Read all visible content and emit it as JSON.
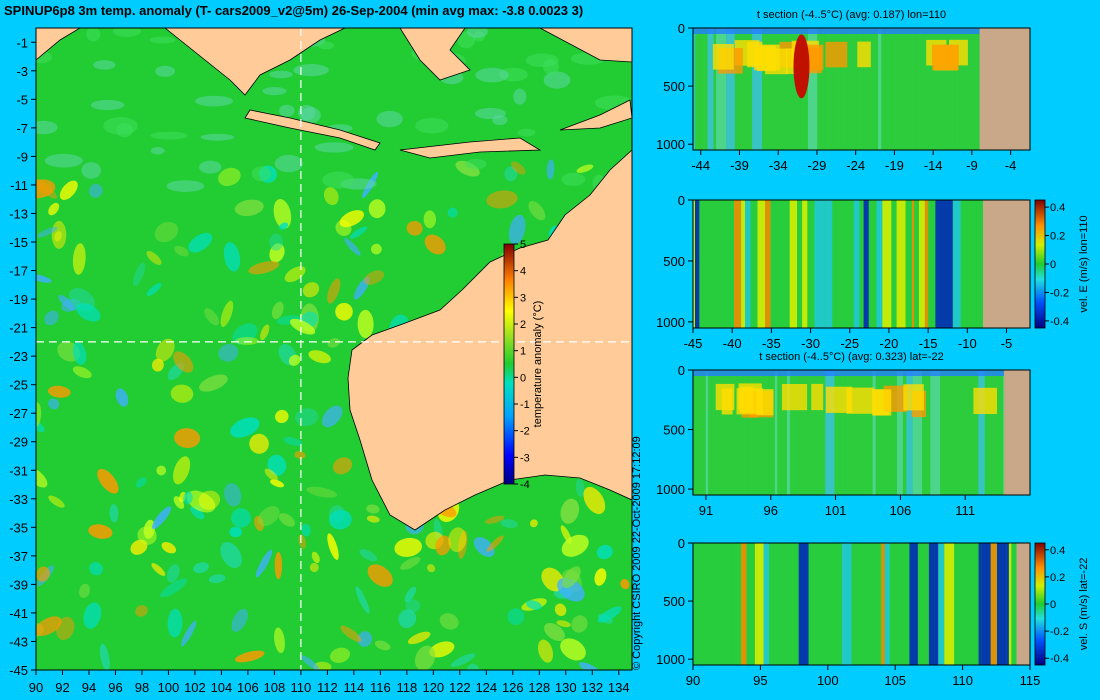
{
  "title": "SPINUP6p8 3m temp. anomaly (T- cars2009_v2@5m) 26-Sep-2004 (min avg max: -3.8 0.0023 3)",
  "copyright": "© Copyright CSIRO 2009  22-Oct-2009 17:12:09",
  "colors": {
    "background": "#00ccff",
    "land": "#ffcc99",
    "panel_land": "#c8a888",
    "ocean_base": "#22cc33",
    "crosshair": "#ffffff"
  },
  "chart_data": [
    {
      "type": "heatmap",
      "name": "map",
      "x_ticks": [
        "90",
        "92",
        "94",
        "96",
        "98",
        "100",
        "102",
        "104",
        "106",
        "108",
        "110",
        "112",
        "114",
        "116",
        "118",
        "120",
        "122",
        "124",
        "126",
        "128",
        "130",
        "132",
        "134"
      ],
      "y_ticks": [
        "-1",
        "-3",
        "-5",
        "-7",
        "-9",
        "-11",
        "-13",
        "-15",
        "-17",
        "-19",
        "-21",
        "-23",
        "-25",
        "-27",
        "-29",
        "-31",
        "-33",
        "-35",
        "-37",
        "-39",
        "-41",
        "-43",
        "-45"
      ],
      "xlim": [
        90,
        135
      ],
      "ylim": [
        -45,
        0
      ],
      "crosshair_lon": 110,
      "crosshair_lat": -22,
      "colorbar": {
        "label": "temperature anomaly (°C)",
        "ticks": [
          "5",
          "4",
          "3",
          "2",
          "1",
          "0",
          "-1",
          "-2",
          "-3",
          "-4"
        ],
        "range": [
          -4,
          5
        ]
      }
    },
    {
      "type": "heatmap",
      "name": "panel1",
      "title": "t section (-4..5°C) (avg: 0.187) lon=110",
      "x_ticks": [
        "-44",
        "-39",
        "-34",
        "-29",
        "-24",
        "-19",
        "-14",
        "-9",
        "-4"
      ],
      "y_ticks": [
        "0",
        "500",
        "1000"
      ],
      "xlim": [
        -45,
        -1.5
      ],
      "ylim": [
        1050,
        0
      ],
      "land_from_x": -8,
      "hot_spot": -31
    },
    {
      "type": "heatmap",
      "name": "panel2",
      "x_ticks": [
        "-45",
        "-40",
        "-35",
        "-30",
        "-25",
        "-20",
        "-15",
        "-10",
        "-5"
      ],
      "y_ticks": [
        "0",
        "500",
        "1000"
      ],
      "xlim": [
        -45,
        -2
      ],
      "ylim": [
        1050,
        0
      ],
      "land_from_x": -8,
      "colorbar": {
        "label": "vel. E (m/s) lon=110",
        "ticks": [
          "0.4",
          "0.2",
          "0",
          "-0.2",
          "-0.4"
        ],
        "range": [
          -0.45,
          0.45
        ]
      }
    },
    {
      "type": "heatmap",
      "name": "panel3",
      "title": "t section (-4..5°C) (avg: 0.323) lat=-22",
      "x_ticks": [
        "91",
        "96",
        "101",
        "106",
        "111"
      ],
      "y_ticks": [
        "0",
        "500",
        "1000"
      ],
      "xlim": [
        90,
        116
      ],
      "ylim": [
        1050,
        0
      ],
      "land_from_x": 114
    },
    {
      "type": "heatmap",
      "name": "panel4",
      "x_ticks": [
        "90",
        "95",
        "100",
        "105",
        "110",
        "115"
      ],
      "y_ticks": [
        "0",
        "500",
        "1000"
      ],
      "xlim": [
        90,
        115
      ],
      "ylim": [
        1050,
        0
      ],
      "land_from_x": 114,
      "colorbar": {
        "label": "vel. S (m/s) lat=-22",
        "ticks": [
          "0.4",
          "0.2",
          "0",
          "-0.2",
          "-0.4"
        ],
        "range": [
          -0.45,
          0.45
        ]
      }
    }
  ]
}
